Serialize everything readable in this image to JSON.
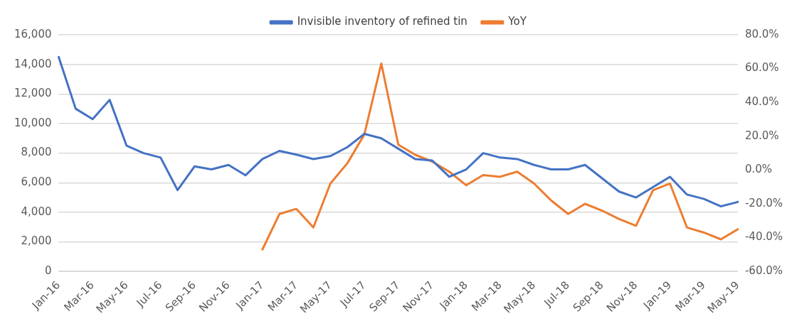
{
  "chart_data": {
    "type": "line",
    "categories": [
      "Jan-16",
      null,
      "Mar-16",
      null,
      "May-16",
      null,
      "Jul-16",
      null,
      "Sep-16",
      null,
      "Nov-16",
      null,
      "Jan-17",
      null,
      "Mar-17",
      null,
      "May-17",
      null,
      "Jul-17",
      null,
      "Sep-17",
      null,
      "Nov-17",
      null,
      "Jan-18",
      null,
      "Mar-18",
      null,
      "May-18",
      null,
      "Jul-18",
      null,
      "Sep-18",
      null,
      "Nov-18",
      null,
      "Jan-19",
      null,
      "Mar-19",
      null,
      "May-19"
    ],
    "series": [
      {
        "name": "Invisible inventory of refined tin",
        "color": "#4472c4",
        "values": [
          14500,
          11000,
          10300,
          11600,
          8500,
          8000,
          7700,
          5500,
          7100,
          6900,
          7200,
          6500,
          7600,
          8150,
          7900,
          7600,
          7800,
          8400,
          9300,
          9000,
          8300,
          7600,
          7500,
          6400,
          6900,
          8000,
          7700,
          7600,
          7200,
          6900,
          6900,
          7200,
          6300,
          5400,
          5000,
          5700,
          6400,
          5200,
          4900,
          4400,
          4700
        ]
      },
      {
        "name": "YoY",
        "color": "#ed7d31",
        "axis": "y2",
        "values": [
          null,
          null,
          null,
          null,
          null,
          null,
          null,
          null,
          null,
          null,
          null,
          null,
          -47,
          -26,
          -23,
          -34,
          -8,
          4,
          21,
          63,
          15,
          9,
          5,
          -1,
          -9,
          -3,
          -4,
          -1,
          -8,
          -18,
          -26,
          -20,
          -24,
          -29,
          -33,
          -12,
          -8,
          -34,
          -37,
          -41,
          -35
        ]
      }
    ],
    "ylim": [
      0,
      16000
    ],
    "yticks": [
      {
        "value": 0,
        "label": "0"
      },
      {
        "value": 2000,
        "label": "2,000"
      },
      {
        "value": 4000,
        "label": "4,000"
      },
      {
        "value": 6000,
        "label": "6,000"
      },
      {
        "value": 8000,
        "label": "8,000"
      },
      {
        "value": 10000,
        "label": "10,000"
      },
      {
        "value": 12000,
        "label": "12,000"
      },
      {
        "value": 14000,
        "label": "14,000"
      },
      {
        "value": 16000,
        "label": "16,000"
      }
    ],
    "y2lim": [
      -60,
      80
    ],
    "y2ticks": [
      {
        "value": -60,
        "label": "-60.0%"
      },
      {
        "value": -40,
        "label": "-40.0%"
      },
      {
        "value": -20,
        "label": "-20.0%"
      },
      {
        "value": 0,
        "label": "0.0%"
      },
      {
        "value": 20,
        "label": "20.0%"
      },
      {
        "value": 40,
        "label": "40.0%"
      },
      {
        "value": 60,
        "label": "60.0%"
      },
      {
        "value": 80,
        "label": "80.0%"
      }
    ],
    "grid": "y",
    "legend": "top",
    "marker": "none",
    "line_style": "solid"
  }
}
